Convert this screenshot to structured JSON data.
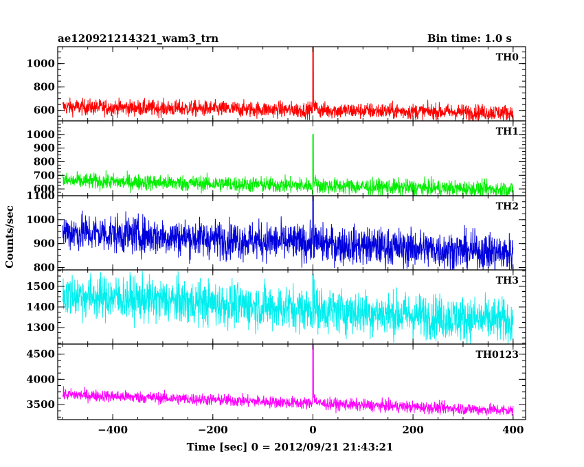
{
  "header": {
    "left_title": "ae120921214321_wam3_trn",
    "right_title": "Bin time: 1.0 s"
  },
  "chart_data": {
    "type": "line",
    "xlabel": "Time [sec] 0 = 2012/09/21 21:43:21",
    "ylabel": "Counts/sec",
    "xlim": [
      -510,
      425
    ],
    "x_ticks": [
      -400,
      -200,
      0,
      200,
      400
    ],
    "x_tick_labels": [
      "−400",
      "−200",
      "0",
      "200",
      "400"
    ],
    "series": [
      {
        "name": "TH0",
        "color": "#ff0000",
        "ylim": [
          510,
          1145
        ],
        "y_ticks": [
          600,
          800,
          1000
        ],
        "y_tick_labels": [
          "600",
          "800",
          "1000"
        ],
        "baseline_start": 630,
        "baseline_end": 580,
        "noise": 35,
        "spike_peak": 1145,
        "x_start": -500,
        "x_end": 400,
        "values_note": ""
      },
      {
        "name": "TH1",
        "color": "#00ee00",
        "ylim": [
          550,
          1100
        ],
        "y_ticks": [
          600,
          700,
          800,
          900,
          1000
        ],
        "y_tick_labels": [
          "600",
          "700",
          "800",
          "900",
          "1000"
        ],
        "baseline_start": 660,
        "baseline_end": 595,
        "noise": 30,
        "spike_peak": 1000,
        "x_start": -500,
        "x_end": 400,
        "values_note": ""
      },
      {
        "name": "TH2",
        "color": "#0000dd",
        "ylim": [
          790,
          1100
        ],
        "y_ticks": [
          800,
          900,
          1000,
          1100
        ],
        "y_tick_labels": [
          "800",
          "900",
          "1000",
          "1100"
        ],
        "baseline_start": 950,
        "baseline_end": 860,
        "noise": 40,
        "spike_peak": 1100,
        "x_start": -500,
        "x_end": 400,
        "values_note": ""
      },
      {
        "name": "TH3",
        "color": "#00eeee",
        "ylim": [
          1220,
          1580
        ],
        "y_ticks": [
          1300,
          1400,
          1500
        ],
        "y_tick_labels": [
          "1300",
          "1400",
          "1500"
        ],
        "baseline_start": 1460,
        "baseline_end": 1330,
        "noise": 55,
        "spike_peak": 1560,
        "x_start": -500,
        "x_end": 400,
        "values_note": ""
      },
      {
        "name": "TH0123",
        "color": "#ff00ff",
        "ylim": [
          3200,
          4700
        ],
        "y_ticks": [
          3500,
          4000,
          4500
        ],
        "y_tick_labels": [
          "3500",
          "4000",
          "4500"
        ],
        "baseline_start": 3700,
        "baseline_end": 3380,
        "noise": 60,
        "spike_peak": 4700,
        "x_start": -500,
        "x_end": 400,
        "values_note": ""
      }
    ]
  }
}
